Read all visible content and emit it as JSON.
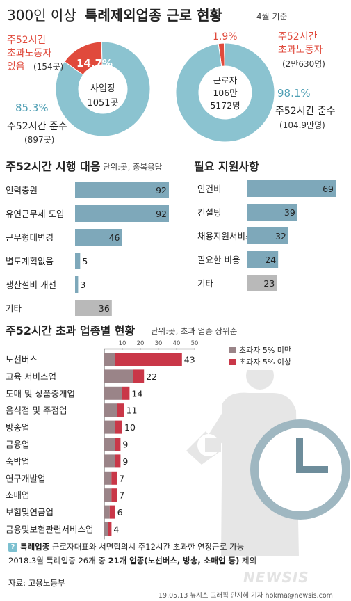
{
  "header": {
    "title_prefix": "300인 이상",
    "title_main": "특례제외업종 근로 현황",
    "date_note": "4월 기준"
  },
  "colors": {
    "teal": "#8bc3d0",
    "red": "#e04a3c",
    "steel": "#7ea8ba",
    "gray": "#b9b9b9",
    "mauve": "#9a8488",
    "crimson": "#c93748",
    "teal_text": "#4f9fb4"
  },
  "chart_data": [
    {
      "type": "pie",
      "center_label": [
        "사업장",
        "1051곳"
      ],
      "slices": [
        {
          "label": "주52시간 초과노동자 있음",
          "value": 14.7,
          "pct_text": "14.7%",
          "count": "(154곳)"
        },
        {
          "label": "주52시간 준수",
          "value": 85.3,
          "pct_text": "85.3%",
          "count": "(897곳)"
        }
      ],
      "texts": {
        "exceed_1": "주52시간",
        "exceed_2": "초과노동자",
        "exceed_3": "있음",
        "comply": "주52시간 준수"
      }
    },
    {
      "type": "pie",
      "center_label": [
        "근로자",
        "106만",
        "5172명"
      ],
      "slices": [
        {
          "label": "주52시간 초과노동자",
          "value": 1.9,
          "pct_text": "1.9%",
          "count": "(2만630명)"
        },
        {
          "label": "주52시간 준수",
          "value": 98.1,
          "pct_text": "98.1%",
          "count": "(104.9만명)"
        }
      ],
      "texts": {
        "exceed_1": "주52시간",
        "exceed_2": "초과노동자",
        "comply": "주52시간 준수"
      }
    },
    {
      "type": "bar",
      "title": "주52시간 시행 대응",
      "subtitle": "단위:곳, 중복응답",
      "categories": [
        "인력충원",
        "유연근무제 도입",
        "근무형태변경",
        "별도계획없음",
        "생산설비 개선",
        "기타"
      ],
      "values": [
        92,
        92,
        46,
        5,
        3,
        36
      ],
      "highlight": [
        "steel",
        "steel",
        "steel",
        "steel",
        "steel",
        "gray"
      ]
    },
    {
      "type": "bar",
      "title": "필요 지원사항",
      "categories": [
        "인건비",
        "컨설팅",
        "채용지원서비스",
        "필요한 비용",
        "기타"
      ],
      "values": [
        69,
        39,
        32,
        24,
        23
      ],
      "highlight": [
        "steel",
        "steel",
        "steel",
        "steel",
        "gray"
      ]
    },
    {
      "type": "bar",
      "title": "주52시간 초과 업종별 현황",
      "subtitle": "단위:곳, 초과 업종 상위순",
      "categories": [
        "노선버스",
        "교육 서비스업",
        "도매 및 상품중개업",
        "음식점 및 주점업",
        "방송업",
        "금융업",
        "숙박업",
        "연구개발업",
        "소매업",
        "보험및연금업",
        "금융및보험관련서비스업"
      ],
      "series": [
        {
          "name": "초과자 5% 미만",
          "values": [
            6,
            16,
            10,
            7,
            6,
            6,
            6,
            4,
            4,
            3,
            2
          ]
        },
        {
          "name": "초과자 5% 이상",
          "values": [
            37,
            6,
            4,
            4,
            4,
            3,
            3,
            3,
            3,
            3,
            2
          ]
        }
      ],
      "totals": [
        43,
        22,
        14,
        11,
        10,
        9,
        9,
        7,
        7,
        6,
        4
      ],
      "xticks": [
        "10",
        "20",
        "30",
        "40",
        "50"
      ],
      "xlim": [
        0,
        50
      ]
    }
  ],
  "footer": {
    "q": "?",
    "line1_bold": "특례업종",
    "line1_rest": " 근로자대표와 서면합의시 주12시간 초과한 연장근로 가능",
    "line2_pre": "2018.3월 특례업종 26개 중 ",
    "line2_bold": "21개 업종(노선버스, 방송, 소매업 등)",
    "line2_post": " 제외",
    "source": "자료: 고용노동부",
    "credit": "19.05.13 뉴시스 그래픽 안지혜 기자 hokma@newsis.com",
    "logo": "NEWSIS"
  }
}
